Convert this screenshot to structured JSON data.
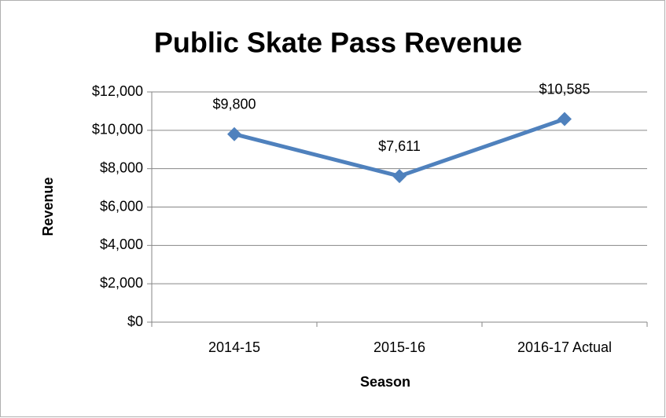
{
  "chart_data": {
    "type": "line",
    "title": "Public Skate Pass Revenue",
    "x_label": "Season",
    "y_label": "Revenue",
    "categories": [
      "2014-15",
      "2015-16",
      "2016-17 Actual"
    ],
    "values": [
      9800,
      7611,
      10585
    ],
    "value_labels": [
      "$9,800",
      "$7,611",
      "$10,585"
    ],
    "color": "#4f81bd",
    "ylim": [
      0,
      12000
    ],
    "yticks": [
      {
        "value": 0,
        "label": "$0"
      },
      {
        "value": 2000,
        "label": "$2,000"
      },
      {
        "value": 4000,
        "label": "$4,000"
      },
      {
        "value": 6000,
        "label": "$6,000"
      },
      {
        "value": 8000,
        "label": "$8,000"
      },
      {
        "value": 10000,
        "label": "$10,000"
      },
      {
        "value": 12000,
        "label": "$12,000"
      }
    ],
    "grid": true
  }
}
